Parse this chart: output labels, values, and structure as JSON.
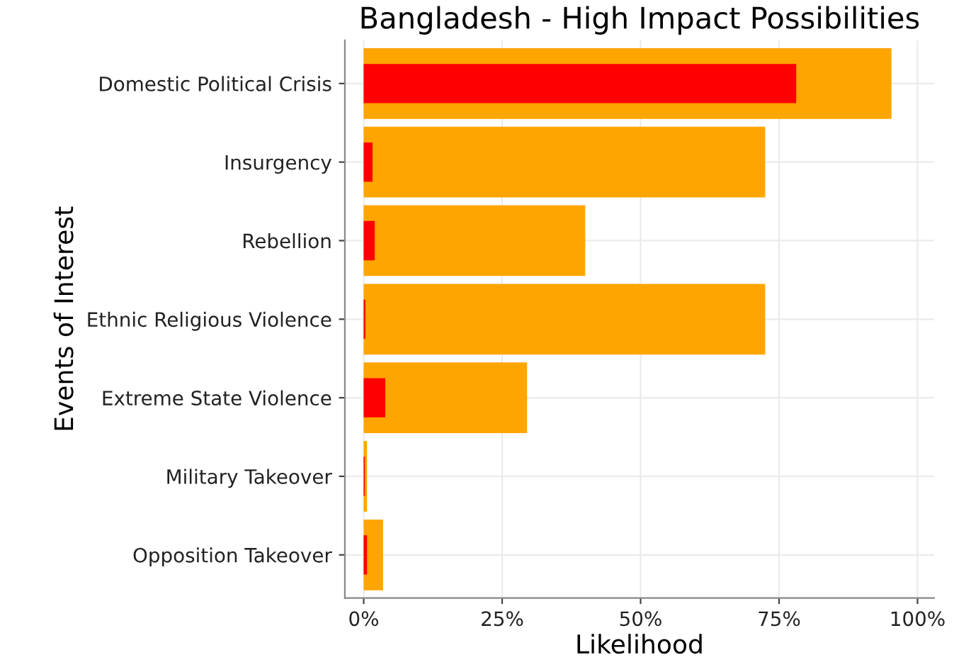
{
  "chart_data": {
    "type": "bar",
    "orientation": "horizontal",
    "title": "Bangladesh - High Impact Possibilities",
    "xlabel": "Likelihood",
    "ylabel": "Events of Interest",
    "categories": [
      "Domestic Political Crisis",
      "Insurgency",
      "Rebellion",
      "Ethnic Religious Violence",
      "Extreme State Violence",
      "Military Takeover",
      "Opposition Takeover"
    ],
    "series": [
      {
        "color": "#ffa500",
        "values": [
          95.3,
          72.5,
          40,
          72.5,
          29.5,
          0.6,
          3.5
        ]
      },
      {
        "color": "#ff0000",
        "values": [
          78.1,
          1.6,
          2,
          0.3,
          3.9,
          0.2,
          0.6
        ]
      }
    ],
    "xlim": [
      -3.4,
      103
    ],
    "xticks": [
      {
        "value": 0,
        "label": "0%"
      },
      {
        "value": 25,
        "label": "25%"
      },
      {
        "value": 50,
        "label": "50%"
      },
      {
        "value": 75,
        "label": "75%"
      },
      {
        "value": 100,
        "label": "100%"
      }
    ],
    "grid": true
  }
}
